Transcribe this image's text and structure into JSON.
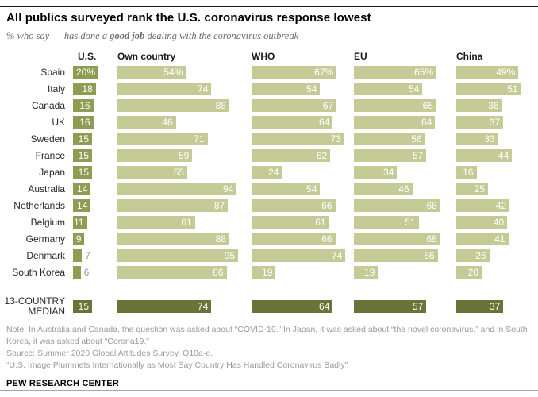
{
  "page": {
    "title": "All publics surveyed rank the U.S. coronavirus response lowest",
    "subtitle_prefix": "% who say __ has done a ",
    "subtitle_emphasis": "good job",
    "subtitle_suffix": " dealing with the coronavirus outbreak"
  },
  "header": {
    "columns": [
      "U.S.",
      "Own country",
      "WHO",
      "EU",
      "China"
    ]
  },
  "chart_data": {
    "type": "bar",
    "orientation": "horizontal",
    "unit": "%",
    "xlim": [
      0,
      100
    ],
    "value_labels": "inside-end",
    "legend_position": "column-headers",
    "categories": [
      "Spain",
      "Italy",
      "Canada",
      "UK",
      "Sweden",
      "France",
      "Japan",
      "Australia",
      "Netherlands",
      "Belgium",
      "Germany",
      "Denmark",
      "South Korea"
    ],
    "series": [
      {
        "name": "U.S.",
        "values": [
          20,
          18,
          16,
          16,
          15,
          15,
          15,
          14,
          14,
          11,
          9,
          7,
          6
        ]
      },
      {
        "name": "Own country",
        "values": [
          54,
          74,
          88,
          46,
          71,
          59,
          55,
          94,
          87,
          61,
          88,
          95,
          86
        ]
      },
      {
        "name": "WHO",
        "values": [
          67,
          54,
          67,
          64,
          73,
          62,
          24,
          54,
          66,
          61,
          66,
          74,
          19
        ]
      },
      {
        "name": "EU",
        "values": [
          65,
          54,
          65,
          64,
          56,
          57,
          34,
          46,
          68,
          51,
          68,
          66,
          19
        ]
      },
      {
        "name": "China",
        "values": [
          49,
          51,
          36,
          37,
          33,
          44,
          16,
          25,
          42,
          40,
          41,
          26,
          20
        ]
      }
    ],
    "median": {
      "label": "13-COUNTRY MEDIAN",
      "values": [
        15,
        74,
        64,
        57,
        37
      ]
    }
  },
  "colors": {
    "us_bar": "#8f9c53",
    "other_bar": "#c5cb96",
    "median_bar": "#6a7438",
    "value_text": "#ffffff",
    "outside_value_text": "#9a9a9a"
  },
  "footer": {
    "note": "Note: In Australia and Canada, the question was asked about “COVID-19.” In Japan, it was asked about “the novel coronavirus,” and in South Korea, it was asked about “Corona19.”",
    "source": "Source: Summer 2020 Global Attitudes Survey. Q10a-e.",
    "report": "“U.S. Image Plummets Internationally as Most Say Country Has Handled Coronavirus Badly”",
    "brand": "PEW RESEARCH CENTER"
  }
}
